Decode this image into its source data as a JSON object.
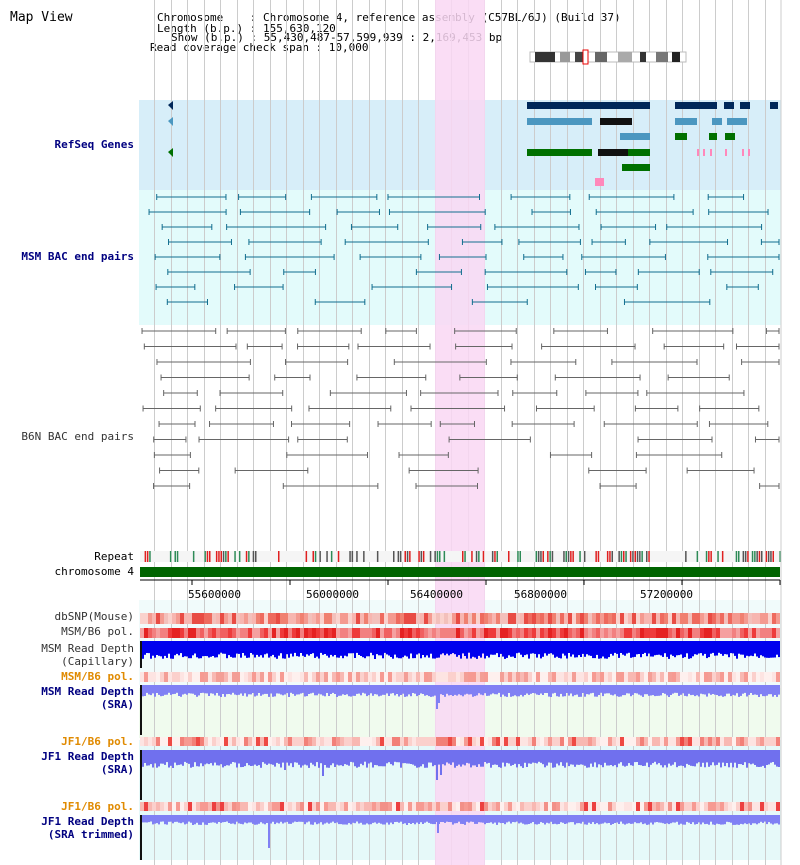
{
  "page": {
    "title": "Map View"
  },
  "header": {
    "chromosome_line": "Chromosome    : Chromosome 4, reference assembly (C57BL/6J) (Build 37)",
    "length_line": "Length (b.p.) : 155,630,120",
    "show_line": "Show (b.p.) : 55,430,487-57,599,939 : 2,169,453 bp",
    "coverage_line": "Read coverage check span : 10,000"
  },
  "tracks": {
    "refseq": "RefSeq Genes",
    "msm_bac": "MSM BAC end pairs",
    "b6n_bac": "B6N BAC end pairs",
    "repeat": "Repeat",
    "chromosome": "chromosome 4",
    "dbsnp": "dbSNP(Mouse)",
    "msm_b6_pol_1": "MSM/B6 pol.",
    "msm_read_depth_cap_1": "MSM Read Depth",
    "msm_read_depth_cap_2": "(Capillary)",
    "msm_b6_pol_2": "MSM/B6 pol.",
    "msm_read_depth_sra_1": "MSM Read Depth",
    "msm_read_depth_sra_2": "(SRA)",
    "jf1_b6_pol_1": "JF1/B6 pol.",
    "jf1_read_depth_sra_1": "JF1 Read Depth",
    "jf1_read_depth_sra_2": "(SRA)",
    "jf1_b6_pol_2": "JF1/B6 pol.",
    "jf1_read_depth_trim_1": "JF1 Read Depth",
    "jf1_read_depth_trim_2": "(SRA trimmed)"
  },
  "axis": {
    "ticks": [
      "55600000",
      "56000000",
      "56400000",
      "56800000",
      "57200000"
    ]
  },
  "colors": {
    "highlight": "#f9d7f3",
    "refseq_bg": "#d7eef9",
    "bac_bg": "#e3fbfb",
    "gene_navy": "#00285a",
    "gene_blue": "#4b97c0",
    "gene_green": "#007000",
    "chromosome": "#006400",
    "depth_blue": "#0000ee",
    "depth_light": "#8080f4"
  }
}
